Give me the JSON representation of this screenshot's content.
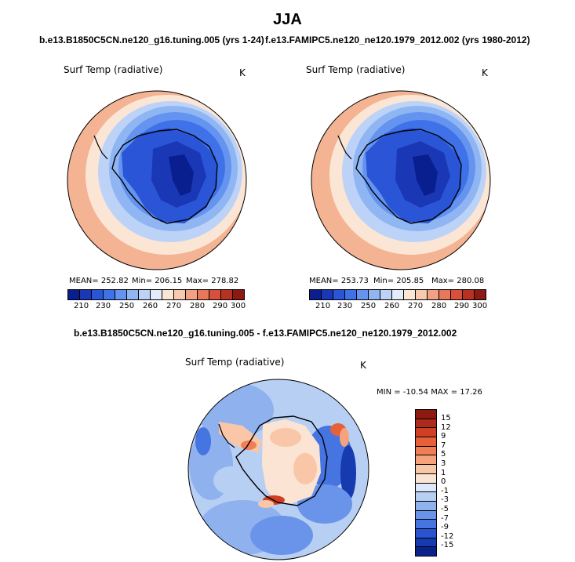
{
  "figure": {
    "title": "JJA",
    "left_subtitle": "b.e13.B1850C5CN.ne120_g16.tuning.005 (yrs 1-24)",
    "right_subtitle": "f.e13.FAMIPC5.ne120_ne120.1979_2012.002 (yrs 1980-2012)",
    "diff_subtitle": "b.e13.B1850C5CN.ne120_g16.tuning.005 - f.e13.FAMIPC5.ne120_ne120.1979_2012.002"
  },
  "left_panel": {
    "variable": "Surf Temp (radiative)",
    "units": "K",
    "mean_text": "MEAN= 252.82",
    "min_text": "Min= 206.15",
    "max_text": "Max= 278.82"
  },
  "right_panel": {
    "variable": "Surf Temp (radiative)",
    "units": "K",
    "mean_text": "MEAN= 253.73",
    "min_text": "Min= 205.85",
    "max_text": "Max= 280.08"
  },
  "diff_panel": {
    "variable": "Surf Temp (radiative)",
    "units": "K",
    "minmax_text": "MIN = -10.54  MAX =  17.26"
  },
  "colorbar_abs": {
    "labels": [
      "210",
      "230",
      "250",
      "260",
      "270",
      "280",
      "290",
      "300"
    ],
    "colors": [
      "#0a1f8f",
      "#1a37b5",
      "#2a55d6",
      "#3f72e8",
      "#6494ef",
      "#8fb5f3",
      "#bcd3f7",
      "#e3ecfa",
      "#fbe6d6",
      "#f7c9ae",
      "#f2a283",
      "#e8785a",
      "#d8503a",
      "#b83222",
      "#8c1a12"
    ]
  },
  "colorbar_diff": {
    "labels": [
      "15",
      "12",
      "9",
      "7",
      "5",
      "3",
      "1",
      "0",
      "-1",
      "-3",
      "-5",
      "-7",
      "-9",
      "-12",
      "-15"
    ],
    "colors": [
      "#8c1a12",
      "#b02a1c",
      "#cf3f24",
      "#e6603a",
      "#f07f55",
      "#f6a37c",
      "#f9c6a8",
      "#fbe4d4",
      "#dde8fb",
      "#b8cff4",
      "#8fb2ef",
      "#6a94ea",
      "#4674e0",
      "#2a53cf",
      "#163aaf",
      "#0a228a"
    ]
  }
}
